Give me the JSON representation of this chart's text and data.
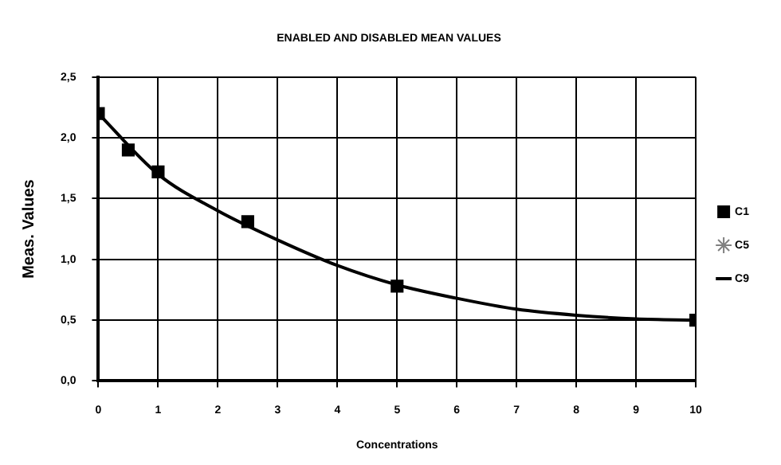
{
  "chart_data": {
    "type": "scatter",
    "title": "ENABLED AND DISABLED MEAN VALUES",
    "xlabel": "Concentrations",
    "ylabel": "Meas. Values",
    "xlim": [
      0,
      10
    ],
    "xticks": [
      0,
      1,
      2,
      3,
      4,
      5,
      6,
      7,
      8,
      9,
      10
    ],
    "ylim": [
      0,
      2.5
    ],
    "yticks": [
      {
        "value": 0,
        "label": "0,0"
      },
      {
        "value": 0.5,
        "label": "0,5"
      },
      {
        "value": 1,
        "label": "1,0"
      },
      {
        "value": 1.5,
        "label": "1,5"
      },
      {
        "value": 2,
        "label": "2,0"
      },
      {
        "value": 2.5,
        "label": "2,5"
      }
    ],
    "grid": true,
    "legend": "right",
    "series": [
      {
        "name": "C1",
        "marker": "square",
        "color": "#000000",
        "x": [
          0,
          0.5,
          1,
          2.5,
          5,
          10
        ],
        "values": [
          2.2,
          1.9,
          1.72,
          1.31,
          0.78,
          0.5
        ]
      },
      {
        "name": "C5",
        "marker": "star",
        "color": "#808080"
      },
      {
        "name": "C9",
        "type": "line",
        "marker": "none",
        "color": "#000000",
        "x": [
          0,
          1,
          2,
          3,
          4,
          5,
          6,
          7,
          8,
          9,
          10
        ],
        "values": [
          2.2,
          1.7,
          1.4,
          1.16,
          0.95,
          0.79,
          0.68,
          0.59,
          0.54,
          0.51,
          0.5
        ]
      }
    ]
  }
}
